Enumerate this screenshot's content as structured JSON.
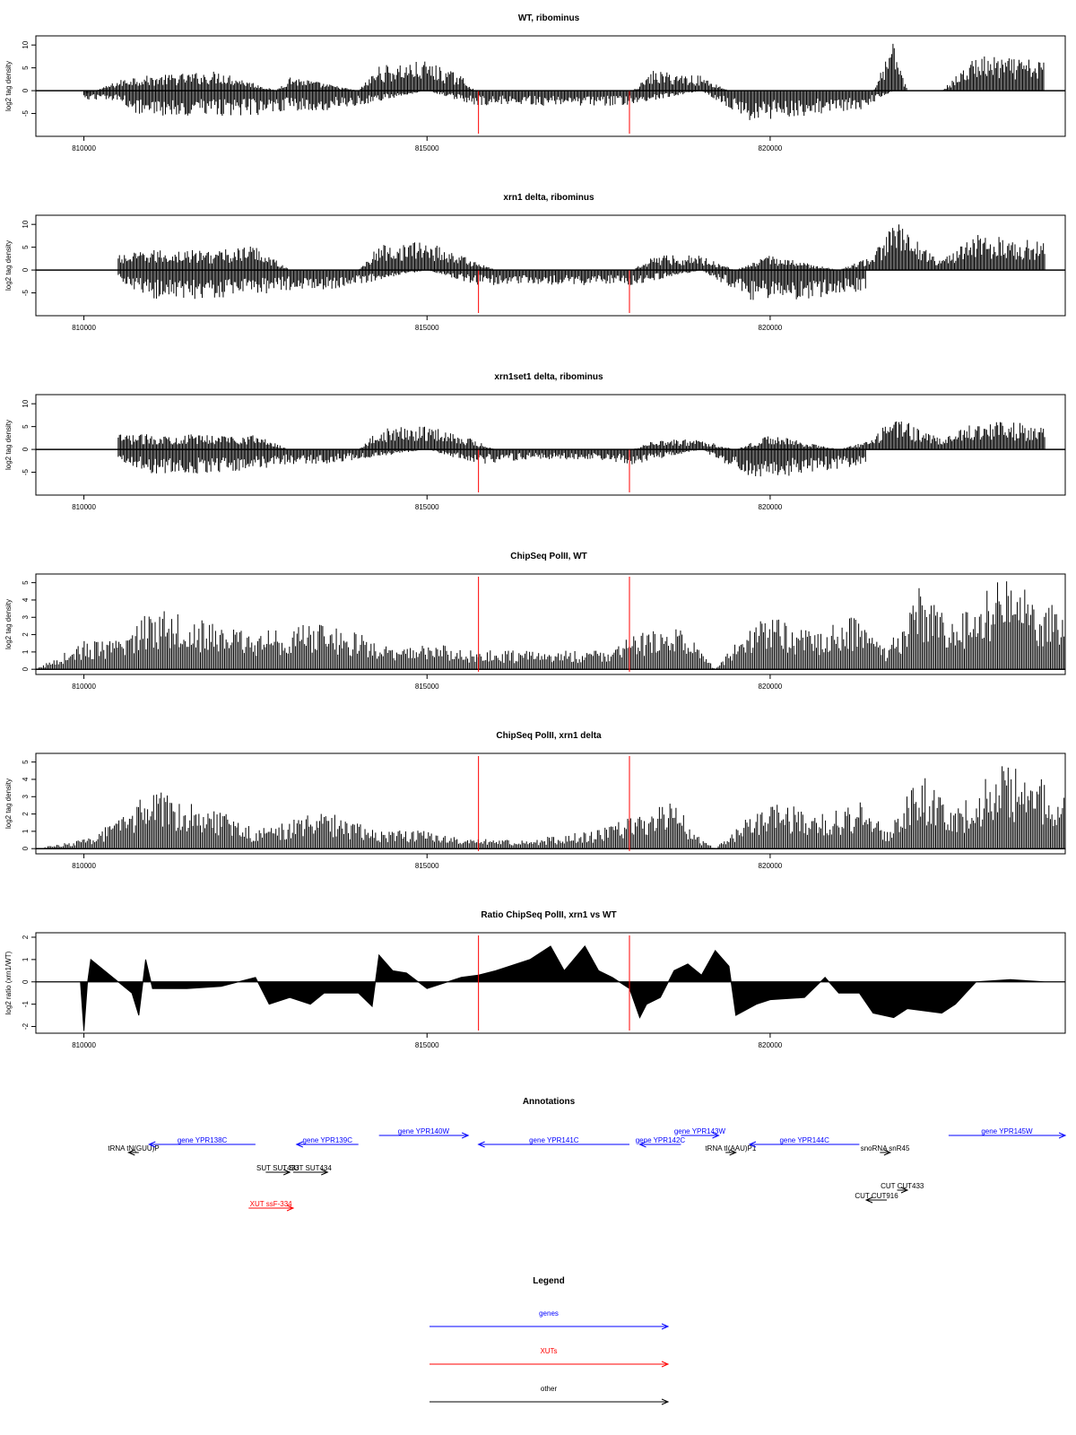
{
  "chart_data": [
    {
      "type": "bar",
      "title": "WT, ribominus",
      "ylabel": "log2 tag density",
      "ylim": [
        -10,
        12
      ],
      "yticks": [
        -5,
        0,
        5,
        10
      ],
      "ytick_labels": [
        "-5",
        "0",
        "5",
        "10"
      ],
      "xlim": [
        809300,
        824300
      ],
      "xticks": [
        810000,
        815000,
        820000
      ],
      "xtick_labels": [
        "810000",
        "815000",
        "820000"
      ],
      "red_lines_x": [
        815750,
        817950
      ],
      "series": [
        {
          "x": [
            810000,
            810500,
            810700,
            811000,
            812000,
            812800,
            813000,
            814000,
            814300,
            815000,
            815500,
            815700,
            816500,
            817500,
            818000,
            818300,
            819000,
            819400,
            819700,
            820500,
            821000,
            821500,
            821800,
            822000,
            822500,
            823000,
            824000
          ],
          "values": [
            -1,
            2,
            3,
            3,
            4,
            0,
            3,
            0,
            5,
            6,
            3,
            0,
            0,
            0,
            0,
            4,
            3,
            0,
            0,
            0,
            0,
            0,
            10,
            0,
            0,
            7,
            6
          ]
        },
        {
          "x": [
            810000,
            810500,
            810800,
            811500,
            812500,
            813000,
            813500,
            814000,
            815000,
            815700,
            816500,
            817500,
            817900,
            819000,
            819700,
            820500,
            821300,
            821800
          ],
          "values": [
            -2,
            -2,
            -5,
            -5,
            -5,
            -4,
            -4,
            -3,
            0,
            -3,
            -3,
            -3,
            -3,
            0,
            -6,
            -5,
            -4,
            0
          ]
        }
      ]
    },
    {
      "type": "bar",
      "title": "xrn1 delta, ribominus",
      "ylabel": "log2 tag density",
      "ylim": [
        -10,
        12
      ],
      "yticks": [
        -5,
        0,
        5,
        10
      ],
      "ytick_labels": [
        "-5",
        "0",
        "5",
        "10"
      ],
      "xlim": [
        809300,
        824300
      ],
      "xticks": [
        810000,
        815000,
        820000
      ],
      "xtick_labels": [
        "810000",
        "815000",
        "820000"
      ],
      "red_lines_x": [
        815750,
        817950
      ],
      "series": [
        {
          "x": [
            810500,
            811000,
            811500,
            812000,
            812500,
            813000,
            814000,
            814300,
            815000,
            815500,
            816000,
            817000,
            818000,
            818300,
            819000,
            819500,
            820000,
            821000,
            821500,
            821800,
            822500,
            823000,
            824000
          ],
          "values": [
            3,
            4,
            4,
            4,
            5,
            0,
            0,
            5,
            6,
            3,
            0,
            0,
            0,
            3,
            3,
            0,
            3,
            0,
            3,
            10,
            2,
            7,
            6
          ]
        },
        {
          "x": [
            810500,
            811000,
            811500,
            812500,
            813000,
            813500,
            814000,
            815000,
            815700,
            816500,
            817500,
            818000,
            819000,
            819700,
            820500,
            821400
          ],
          "values": [
            -2,
            -6,
            -6,
            -5,
            -4,
            -4,
            -3,
            0,
            -3,
            -3,
            -3,
            -3,
            0,
            -6,
            -6,
            -4
          ]
        }
      ]
    },
    {
      "type": "bar",
      "title": "xrn1set1 delta, ribominus",
      "ylabel": "log2 tag density",
      "ylim": [
        -10,
        12
      ],
      "yticks": [
        -5,
        0,
        5,
        10
      ],
      "ytick_labels": [
        "-5",
        "0",
        "5",
        "10"
      ],
      "xlim": [
        809300,
        824300
      ],
      "xticks": [
        810000,
        815000,
        820000
      ],
      "xtick_labels": [
        "810000",
        "815000",
        "820000"
      ],
      "red_lines_x": [
        815750,
        817950
      ],
      "series": [
        {
          "x": [
            810500,
            811000,
            811500,
            812000,
            812500,
            813000,
            814000,
            814300,
            815000,
            815500,
            816000,
            817000,
            818000,
            818300,
            819000,
            819500,
            820000,
            821000,
            821500,
            821800,
            822500,
            823000,
            824000
          ],
          "values": [
            3,
            3,
            3,
            3,
            3,
            0,
            0,
            4,
            5,
            3,
            0,
            0,
            0,
            2,
            2,
            0,
            3,
            0,
            2,
            7,
            2,
            6,
            5
          ]
        },
        {
          "x": [
            810500,
            811000,
            811500,
            812500,
            813000,
            813500,
            814000,
            815000,
            815700,
            816500,
            817500,
            818000,
            819000,
            819700,
            820500,
            821400
          ],
          "values": [
            -2,
            -5,
            -5,
            -4,
            -3,
            -3,
            -2,
            0,
            -3,
            -2,
            -2,
            -3,
            0,
            -6,
            -5,
            -3
          ]
        }
      ]
    },
    {
      "type": "bar",
      "title": "ChipSeq PolII, WT",
      "ylabel": "log2 tag density",
      "ylim": [
        -0.3,
        5.5
      ],
      "yticks": [
        0,
        1,
        2,
        3,
        4,
        5
      ],
      "ytick_labels": [
        "0",
        "1",
        "2",
        "3",
        "4",
        "5"
      ],
      "xlim": [
        809300,
        824300
      ],
      "xticks": [
        810000,
        815000,
        820000
      ],
      "xtick_labels": [
        "810000",
        "815000",
        "820000"
      ],
      "red_lines_x": [
        815750,
        817950
      ],
      "series": [
        {
          "x": [
            809300,
            810000,
            810500,
            810900,
            811200,
            811800,
            812500,
            813500,
            814300,
            814500,
            815000,
            815500,
            816500,
            817500,
            818200,
            818600,
            819000,
            819200,
            819600,
            820000,
            820600,
            821000,
            821300,
            821700,
            822200,
            822700,
            823300,
            823800,
            824300
          ],
          "values": [
            0,
            1.5,
            1.5,
            3,
            3.5,
            2.5,
            2,
            2.5,
            1.5,
            1,
            1.5,
            1,
            1,
            1,
            2,
            2.5,
            1,
            0,
            2,
            3,
            2,
            2.5,
            3,
            1,
            4.5,
            2.5,
            5,
            4,
            3
          ]
        }
      ]
    },
    {
      "type": "bar",
      "title": "ChipSeq PolII, xrn1 delta",
      "ylabel": "log2 tag density",
      "ylim": [
        -0.3,
        5.5
      ],
      "yticks": [
        0,
        1,
        2,
        3,
        4,
        5
      ],
      "ytick_labels": [
        "0",
        "1",
        "2",
        "3",
        "4",
        "5"
      ],
      "xlim": [
        809300,
        824300
      ],
      "xticks": [
        810000,
        815000,
        820000
      ],
      "xtick_labels": [
        "810000",
        "815000",
        "820000"
      ],
      "red_lines_x": [
        815750,
        817950
      ],
      "series": [
        {
          "x": [
            809300,
            810000,
            810500,
            810900,
            811200,
            811800,
            812500,
            813500,
            814300,
            814500,
            815000,
            815500,
            816500,
            817500,
            818200,
            818600,
            819000,
            819200,
            819600,
            820000,
            820600,
            821000,
            821300,
            821700,
            822200,
            822700,
            823300,
            823800,
            824300
          ],
          "values": [
            0,
            0.5,
            1.5,
            3,
            3,
            2.5,
            1,
            2,
            1,
            1,
            1,
            0.5,
            0.5,
            1,
            2,
            2.5,
            0.5,
            0,
            1.5,
            2.5,
            2,
            2,
            2.5,
            1,
            4,
            2,
            4.5,
            4,
            3
          ]
        }
      ]
    },
    {
      "type": "area",
      "title": "Ratio ChipSeq PolII, xrn1 vs WT",
      "ylabel": "log2 ratio (xrn1/WT)",
      "ylim": [
        -2.3,
        2.2
      ],
      "yticks": [
        -2,
        -1,
        0,
        1,
        2
      ],
      "ytick_labels": [
        "-2",
        "-1",
        "0",
        "1",
        "2"
      ],
      "xlim": [
        809300,
        824300
      ],
      "xticks": [
        810000,
        815000,
        820000
      ],
      "xtick_labels": [
        "810000",
        "815000",
        "820000"
      ],
      "red_lines_x": [
        815750,
        817950
      ],
      "series": [
        {
          "x": [
            809300,
            809950,
            810000,
            810050,
            810100,
            810500,
            810700,
            810800,
            810900,
            811000,
            811500,
            812000,
            812500,
            812700,
            813000,
            813300,
            813500,
            814000,
            814200,
            814300,
            814500,
            814700,
            815000,
            815500,
            815750,
            816000,
            816500,
            816800,
            817000,
            817300,
            817500,
            817700,
            817950,
            818100,
            818200,
            818400,
            818600,
            818800,
            819000,
            819200,
            819400,
            819500,
            819800,
            820000,
            820500,
            820800,
            821000,
            821300,
            821500,
            821800,
            822000,
            822500,
            822700,
            823000,
            823500,
            824000,
            824300
          ],
          "values": [
            0,
            0,
            -2.2,
            -0.1,
            1.0,
            0,
            -0.5,
            -1.5,
            1.0,
            -0.3,
            -0.3,
            -0.2,
            0.2,
            -1.0,
            -0.7,
            -1.0,
            -0.5,
            -0.5,
            -1.1,
            1.2,
            0.5,
            0.4,
            -0.3,
            0.2,
            0.3,
            0.5,
            1.0,
            1.6,
            0.5,
            1.6,
            0.5,
            0.2,
            -0.3,
            -1.6,
            -1.0,
            -0.7,
            0.5,
            0.8,
            0.3,
            1.4,
            0.7,
            -1.5,
            -1.0,
            -0.8,
            -0.7,
            0.2,
            -0.5,
            -0.5,
            -1.4,
            -1.6,
            -1.2,
            -1.4,
            -1.0,
            0,
            0.1,
            0,
            0
          ]
        }
      ]
    }
  ],
  "annotations": {
    "title": "Annotations",
    "xlim": [
      809300,
      824300
    ],
    "items": [
      {
        "label": "tRNA tN(GUU)P",
        "x1": 810800,
        "x2": 810650,
        "row": 2,
        "color": "#000000"
      },
      {
        "label": "gene YPR138C",
        "x1": 812500,
        "x2": 810950,
        "row": 1,
        "color": "#0000ff"
      },
      {
        "label": "gene YPR139C",
        "x1": 814000,
        "x2": 813100,
        "row": 1,
        "color": "#0000ff"
      },
      {
        "label": "gene YPR140W",
        "x1": 814300,
        "x2": 815600,
        "row": 0,
        "color": "#0000ff"
      },
      {
        "label": "gene YPR141C",
        "x1": 817950,
        "x2": 815750,
        "row": 1,
        "color": "#0000ff"
      },
      {
        "label": "gene YPR142C",
        "x1": 818700,
        "x2": 818100,
        "row": 1,
        "color": "#0000ff"
      },
      {
        "label": "gene YPR143W",
        "x1": 818700,
        "x2": 819250,
        "row": 0,
        "color": "#0000ff"
      },
      {
        "label": "tRNA tI(AAU)P1",
        "x1": 819350,
        "x2": 819500,
        "row": 2,
        "color": "#000000"
      },
      {
        "label": "gene YPR144C",
        "x1": 821300,
        "x2": 819700,
        "row": 1,
        "color": "#0000ff"
      },
      {
        "label": "snoRNA snR45",
        "x1": 821600,
        "x2": 821750,
        "row": 2,
        "color": "#000000"
      },
      {
        "label": "gene YPR145W",
        "x1": 822600,
        "x2": 824300,
        "row": 0,
        "color": "#0000ff"
      },
      {
        "label": "SUT SUT433",
        "x1": 812650,
        "x2": 813000,
        "row": 4,
        "color": "#000000"
      },
      {
        "label": "SUT SUT434",
        "x1": 813050,
        "x2": 813550,
        "row": 4,
        "color": "#000000"
      },
      {
        "label": "CUT CUT433",
        "x1": 821850,
        "x2": 822000,
        "row": 6,
        "color": "#000000"
      },
      {
        "label": "CUT CUT916",
        "x1": 821700,
        "x2": 821400,
        "row": 7,
        "color": "#000000"
      },
      {
        "label": "XUT ssF-334",
        "x1": 812400,
        "x2": 813050,
        "row": 8,
        "color": "#ff0000"
      }
    ]
  },
  "legend": {
    "title": "Legend",
    "items": [
      {
        "label": "genes",
        "color": "#0000ff"
      },
      {
        "label": "XUTs",
        "color": "#ff0000"
      },
      {
        "label": "other",
        "color": "#000000"
      }
    ]
  }
}
